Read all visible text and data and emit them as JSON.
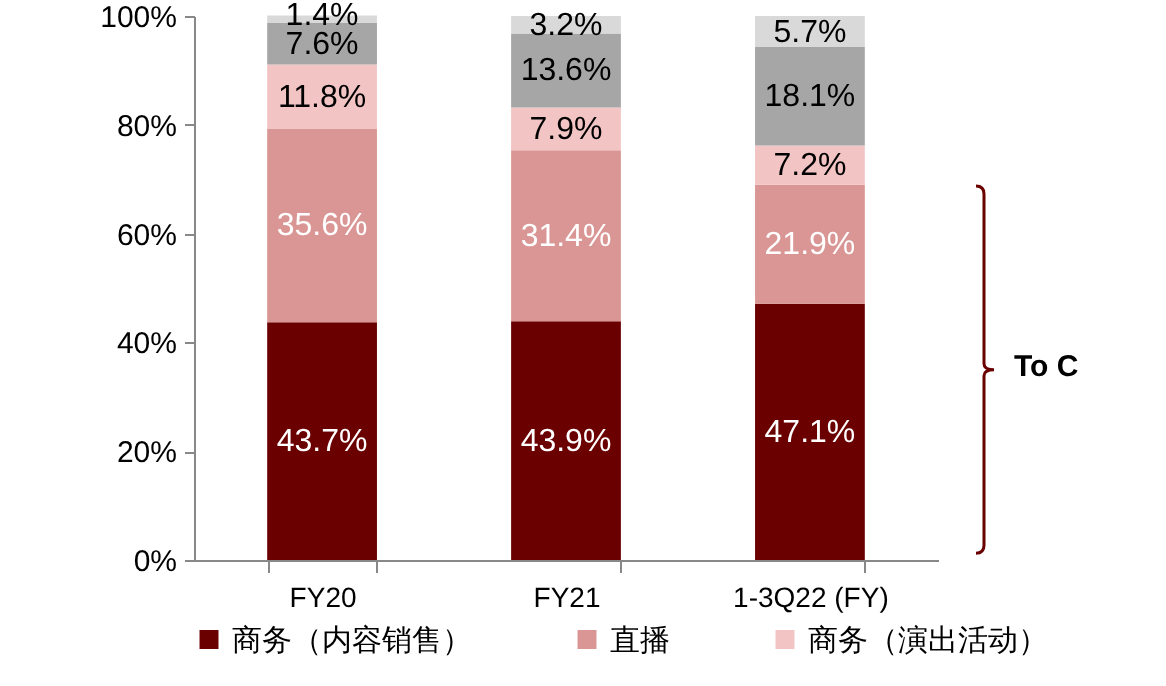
{
  "chart_data": {
    "type": "bar",
    "stacked": true,
    "categories": [
      "FY20",
      "FY21",
      "1-3Q22 (FY)"
    ],
    "series": [
      {
        "name": "商务（内容销售）",
        "color": "#6b0000",
        "values": [
          43.7,
          43.9,
          47.1
        ],
        "value_labels": [
          "43.7%",
          "43.9%",
          "47.1%"
        ]
      },
      {
        "name": "直播",
        "color": "#d99694",
        "values": [
          35.6,
          31.4,
          21.9
        ],
        "value_labels": [
          "35.6%",
          "31.4%",
          "21.9%"
        ]
      },
      {
        "name": "商务（演出活动）",
        "color": "#f2c4c4",
        "values": [
          11.8,
          7.9,
          7.2
        ],
        "value_labels": [
          "11.8%",
          "7.9%",
          "7.2%"
        ]
      },
      {
        "color": "#a6a6a6",
        "values": [
          7.6,
          13.6,
          18.1
        ],
        "value_labels": [
          "7.6%",
          "13.6%",
          "18.1%"
        ]
      },
      {
        "color": "#d9d9d9",
        "values": [
          1.4,
          3.2,
          5.7
        ],
        "value_labels": [
          "1.4%",
          "3.2%",
          "5.7%"
        ]
      }
    ],
    "ylim": [
      0,
      100
    ],
    "yticks": [
      {
        "value": 0,
        "label": "0%"
      },
      {
        "value": 20,
        "label": "20%"
      },
      {
        "value": 40,
        "label": "40%"
      },
      {
        "value": 60,
        "label": "60%"
      },
      {
        "value": 80,
        "label": "80%"
      },
      {
        "value": 100,
        "label": "100%"
      }
    ],
    "legend": "bottom",
    "grid": false,
    "annotations": [
      "To C"
    ]
  }
}
